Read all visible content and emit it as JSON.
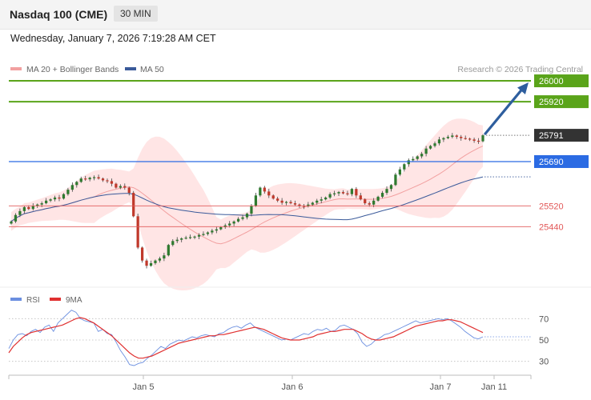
{
  "header": {
    "title": "Nasdaq 100 (CME)",
    "timeframe": "30 MIN",
    "datetime": "Wednesday, January 7, 2026 7:19:28 AM CET"
  },
  "legend": {
    "ma20": "MA 20 + Bollinger Bands",
    "ma50": "MA 50",
    "copyright": "Research © 2026 Trading Central",
    "rsi": "RSI",
    "rsi_ma": "9MA"
  },
  "colors": {
    "resistance": "#5aa41a",
    "pivot": "#2b6be3",
    "support": "#e25858",
    "current": "#333333",
    "bollinger": "#ffe0e0",
    "ma20": "#f2a0a0",
    "ma50": "#3a5a9a",
    "candle_up": "#2f7a2f",
    "candle_down": "#c0392b",
    "arrow": "#2e5e9e",
    "rsi": "#6b8fe0",
    "rsi_ma": "#e03030"
  },
  "chart_data": [
    {
      "type": "candlestick",
      "title": "Nasdaq 100 (CME)",
      "ylim": [
        25220,
        26080
      ],
      "x_tick_labels": [
        "Jan 5",
        "Jan 6",
        "Jan 7",
        "Jan 11"
      ],
      "close_series": [
        25460,
        25485,
        25500,
        25515,
        25508,
        25520,
        25525,
        25530,
        25540,
        25545,
        25552,
        25548,
        25565,
        25582,
        25600,
        25612,
        25625,
        25622,
        25628,
        25630,
        25625,
        25618,
        25615,
        25605,
        25590,
        25596,
        25590,
        25570,
        25480,
        25360,
        25310,
        25290,
        25300,
        25310,
        25318,
        25330,
        25370,
        25385,
        25390,
        25395,
        25398,
        25400,
        25402,
        25408,
        25412,
        25418,
        25425,
        25430,
        25438,
        25445,
        25452,
        25460,
        25470,
        25476,
        25490,
        25520,
        25560,
        25590,
        25575,
        25560,
        25548,
        25540,
        25532,
        25535,
        25530,
        25525,
        25520,
        25518,
        25525,
        25532,
        25540,
        25545,
        25552,
        25565,
        25568,
        25573,
        25568,
        25565,
        25585,
        25560,
        25545,
        25530,
        25525,
        25540,
        25555,
        25570,
        25585,
        25600,
        25640,
        25660,
        25680,
        25695,
        25700,
        25710,
        25720,
        25740,
        25750,
        25760,
        25775,
        25780,
        25785,
        25790,
        25785,
        25780,
        25778,
        25775,
        25770,
        25768,
        25791
      ],
      "levels": [
        {
          "name": "resistance-2",
          "value": 26000,
          "label": "26000"
        },
        {
          "name": "resistance-1",
          "value": 25920,
          "label": "25920"
        },
        {
          "name": "last-price",
          "value": 25791,
          "label": "25791"
        },
        {
          "name": "pivot",
          "value": 25690,
          "label": "25690"
        },
        {
          "name": "support-1",
          "value": 25520,
          "label": "25520"
        },
        {
          "name": "support-2",
          "value": 25440,
          "label": "25440"
        }
      ]
    },
    {
      "type": "line",
      "title": "RSI",
      "series": [
        {
          "name": "RSI",
          "values": [
            42,
            50,
            55,
            56,
            54,
            58,
            60,
            57,
            62,
            64,
            58,
            66,
            70,
            74,
            78,
            76,
            70,
            68,
            67,
            66,
            58,
            60,
            56,
            55,
            48,
            40,
            34,
            27,
            26,
            28,
            29,
            33,
            36,
            40,
            44,
            42,
            46,
            48,
            50,
            49,
            51,
            53,
            52,
            54,
            55,
            54,
            53,
            56,
            57,
            60,
            62,
            63,
            61,
            64,
            66,
            62,
            60,
            58,
            56,
            54,
            52,
            50,
            51,
            50,
            52,
            54,
            56,
            55,
            58,
            60,
            59,
            61,
            58,
            59,
            63,
            64,
            62,
            60,
            56,
            48,
            44,
            46,
            50,
            52,
            55,
            56,
            58,
            60,
            62,
            64,
            66,
            68,
            66,
            67,
            68,
            69,
            70,
            69,
            70,
            68,
            65,
            62,
            58,
            55,
            52,
            51,
            53
          ]
        },
        {
          "name": "9MA",
          "values": [
            38,
            44,
            48,
            52,
            55,
            57,
            58,
            59,
            60,
            61,
            62,
            63,
            64,
            66,
            68,
            70,
            71,
            70,
            68,
            66,
            63,
            60,
            57,
            54,
            50,
            46,
            42,
            38,
            35,
            33,
            33,
            34,
            35,
            37,
            39,
            41,
            43,
            45,
            47,
            48,
            49,
            50,
            51,
            52,
            53,
            54,
            54,
            55,
            55,
            56,
            57,
            58,
            59,
            60,
            61,
            62,
            61,
            60,
            58,
            56,
            54,
            52,
            51,
            50,
            50,
            50,
            51,
            52,
            53,
            55,
            56,
            57,
            58,
            58,
            59,
            60,
            60,
            60,
            58,
            56,
            53,
            51,
            50,
            50,
            51,
            52,
            53,
            55,
            57,
            59,
            61,
            63,
            64,
            65,
            66,
            67,
            68,
            68,
            69,
            69,
            68,
            67,
            65,
            63,
            61,
            59,
            57
          ]
        }
      ],
      "levels": [
        70,
        50,
        30
      ],
      "tick_labels": [
        "70",
        "50",
        "30"
      ],
      "ylim": [
        20,
        80
      ]
    }
  ]
}
